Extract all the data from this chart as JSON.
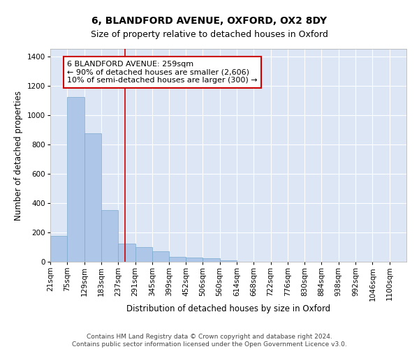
{
  "title_line1": "6, BLANDFORD AVENUE, OXFORD, OX2 8DY",
  "title_line2": "Size of property relative to detached houses in Oxford",
  "xlabel": "Distribution of detached houses by size in Oxford",
  "ylabel": "Number of detached properties",
  "bar_color": "#aec6e8",
  "bar_edge_color": "#7aaacf",
  "background_color": "#dce6f5",
  "grid_color": "#ffffff",
  "annotation_box_color": "#cc0000",
  "vline_color": "#cc0000",
  "vline_x": 259,
  "categories": [
    "21sqm",
    "75sqm",
    "129sqm",
    "183sqm",
    "237sqm",
    "291sqm",
    "345sqm",
    "399sqm",
    "452sqm",
    "506sqm",
    "560sqm",
    "614sqm",
    "668sqm",
    "722sqm",
    "776sqm",
    "830sqm",
    "884sqm",
    "938sqm",
    "992sqm",
    "1046sqm",
    "1100sqm"
  ],
  "bin_edges": [
    21,
    75,
    129,
    183,
    237,
    291,
    345,
    399,
    452,
    506,
    560,
    614,
    668,
    722,
    776,
    830,
    884,
    938,
    992,
    1046,
    1100
  ],
  "bar_heights": [
    175,
    1120,
    875,
    350,
    125,
    100,
    70,
    35,
    30,
    25,
    8,
    1,
    0,
    0,
    0,
    0,
    0,
    0,
    0,
    0,
    0
  ],
  "ylim": [
    0,
    1450
  ],
  "yticks": [
    0,
    200,
    400,
    600,
    800,
    1000,
    1200,
    1400
  ],
  "annotation_text": "6 BLANDFORD AVENUE: 259sqm\n← 90% of detached houses are smaller (2,606)\n10% of semi-detached houses are larger (300) →",
  "footer_text": "Contains HM Land Registry data © Crown copyright and database right 2024.\nContains public sector information licensed under the Open Government Licence v3.0.",
  "title_fontsize": 10,
  "subtitle_fontsize": 9,
  "label_fontsize": 8.5,
  "tick_fontsize": 7.5,
  "annotation_fontsize": 8,
  "footer_fontsize": 6.5
}
